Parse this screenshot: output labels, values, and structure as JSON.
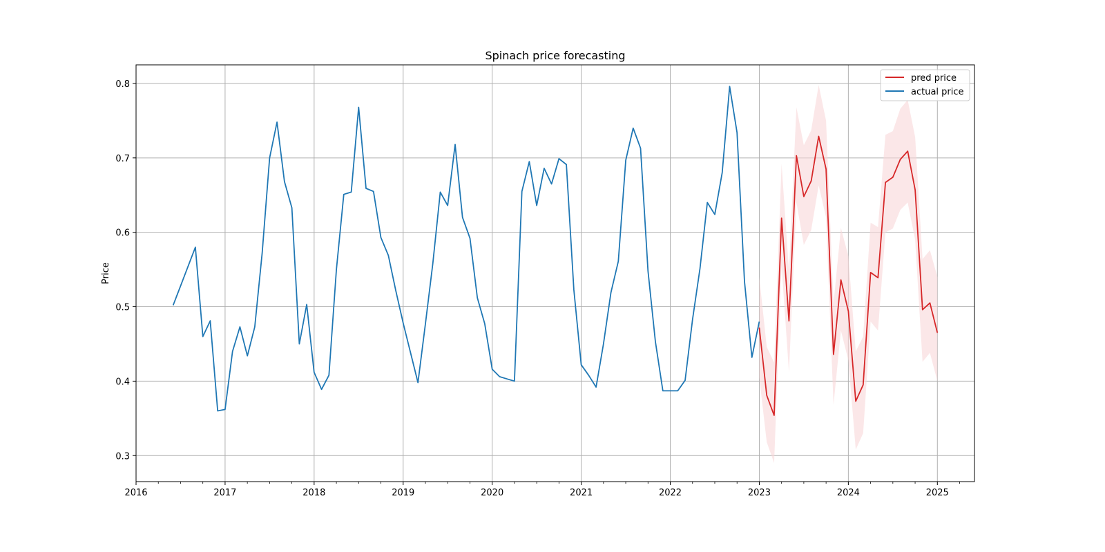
{
  "chart_data": {
    "type": "line",
    "title": "Spinach price forecasting",
    "xlabel": "",
    "ylabel": "Price",
    "xlim": [
      "2016-01-01",
      "2025-06-01"
    ],
    "ylim": [
      0.265,
      0.825
    ],
    "x_ticks": [
      "2016",
      "2017",
      "2018",
      "2019",
      "2020",
      "2021",
      "2022",
      "2023",
      "2024",
      "2025"
    ],
    "y_ticks": [
      "0.3",
      "0.4",
      "0.5",
      "0.6",
      "0.7",
      "0.8"
    ],
    "grid": true,
    "legend": {
      "position": "top-right",
      "entries": [
        "pred price",
        "actual price"
      ]
    },
    "colors": {
      "pred": "#d62728",
      "actual": "#1f77b4",
      "band": "#f8d7d8"
    },
    "series": [
      {
        "name": "actual price",
        "x": [
          "2016-06",
          "2016-07",
          "2016-08",
          "2016-09",
          "2016-10",
          "2016-11",
          "2016-12",
          "2017-01",
          "2017-02",
          "2017-03",
          "2017-04",
          "2017-05",
          "2017-06",
          "2017-07",
          "2017-08",
          "2017-09",
          "2017-10",
          "2017-11",
          "2017-12",
          "2018-01",
          "2018-02",
          "2018-03",
          "2018-04",
          "2018-05",
          "2018-06",
          "2018-07",
          "2018-08",
          "2018-09",
          "2018-10",
          "2018-11",
          "2018-12",
          "2019-01",
          "2019-02",
          "2019-03",
          "2019-04",
          "2019-05",
          "2019-06",
          "2019-07",
          "2019-08",
          "2019-09",
          "2019-10",
          "2019-11",
          "2019-12",
          "2020-01",
          "2020-02",
          "2020-03",
          "2020-04",
          "2020-05",
          "2020-06",
          "2020-07",
          "2020-08",
          "2020-09",
          "2020-10",
          "2020-11",
          "2020-12",
          "2021-01",
          "2021-02",
          "2021-03",
          "2021-04",
          "2021-05",
          "2021-06",
          "2021-07",
          "2021-08",
          "2021-09",
          "2021-10",
          "2021-11",
          "2021-12",
          "2022-01",
          "2022-02",
          "2022-03",
          "2022-04",
          "2022-05",
          "2022-06",
          "2022-07",
          "2022-08",
          "2022-09",
          "2022-10",
          "2022-11",
          "2022-12",
          "2023-01"
        ],
        "y": [
          0.502,
          0.528,
          0.554,
          0.58,
          0.46,
          0.481,
          0.36,
          0.362,
          0.44,
          0.473,
          0.434,
          0.473,
          0.572,
          0.7,
          0.748,
          0.668,
          0.633,
          0.45,
          0.503,
          0.412,
          0.389,
          0.408,
          0.55,
          0.651,
          0.654,
          0.768,
          0.659,
          0.655,
          0.593,
          0.569,
          0.522,
          0.478,
          0.438,
          0.398,
          0.477,
          0.558,
          0.654,
          0.636,
          0.718,
          0.62,
          0.592,
          0.512,
          0.477,
          0.416,
          0.406,
          0.403,
          0.4,
          0.655,
          0.695,
          0.636,
          0.686,
          0.665,
          0.699,
          0.691,
          0.523,
          0.422,
          0.408,
          0.392,
          0.45,
          0.519,
          0.561,
          0.697,
          0.74,
          0.713,
          0.548,
          0.453,
          0.387,
          0.387,
          0.387,
          0.401,
          0.483,
          0.551,
          0.64,
          0.624,
          0.68,
          0.796,
          0.734,
          0.534,
          0.432,
          0.48
        ]
      },
      {
        "name": "pred price",
        "x": [
          "2023-01",
          "2023-02",
          "2023-03",
          "2023-04",
          "2023-05",
          "2023-06",
          "2023-07",
          "2023-08",
          "2023-09",
          "2023-10",
          "2023-11",
          "2023-12",
          "2024-01",
          "2024-02",
          "2024-03",
          "2024-04",
          "2024-05",
          "2024-06",
          "2024-07",
          "2024-08",
          "2024-09",
          "2024-10",
          "2024-11",
          "2024-12",
          "2025-01"
        ],
        "y": [
          0.472,
          0.381,
          0.354,
          0.619,
          0.481,
          0.703,
          0.648,
          0.669,
          0.729,
          0.685,
          0.436,
          0.536,
          0.494,
          0.373,
          0.395,
          0.546,
          0.539,
          0.667,
          0.674,
          0.698,
          0.709,
          0.657,
          0.496,
          0.505,
          0.465
        ],
        "lower": [
          0.405,
          0.318,
          0.29,
          0.555,
          0.412,
          0.64,
          0.583,
          0.603,
          0.663,
          0.62,
          0.368,
          0.468,
          0.428,
          0.308,
          0.33,
          0.48,
          0.468,
          0.6,
          0.605,
          0.63,
          0.64,
          0.59,
          0.426,
          0.438,
          0.4
        ],
        "upper": [
          0.54,
          0.446,
          0.425,
          0.692,
          0.548,
          0.768,
          0.717,
          0.737,
          0.798,
          0.75,
          0.504,
          0.606,
          0.568,
          0.44,
          0.46,
          0.613,
          0.607,
          0.731,
          0.736,
          0.766,
          0.778,
          0.728,
          0.564,
          0.576,
          0.54
        ]
      }
    ]
  }
}
